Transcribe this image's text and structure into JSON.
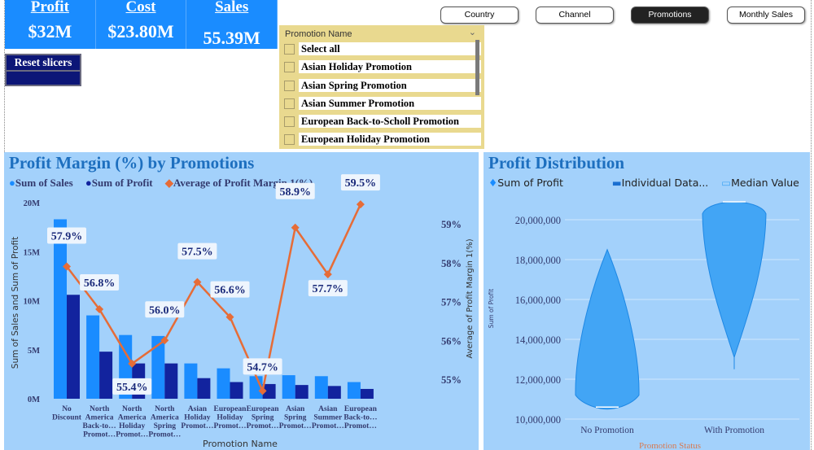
{
  "kpis": [
    {
      "title": "Profit",
      "value": "$32M"
    },
    {
      "title": "Cost",
      "value": "$23.80M"
    },
    {
      "title": "Sales",
      "value": "55.39M"
    }
  ],
  "reset_label": "Reset slicers",
  "nav": [
    {
      "label": "Country",
      "active": false
    },
    {
      "label": "Channel",
      "active": false
    },
    {
      "label": "Promotions",
      "active": true
    },
    {
      "label": "Monthly Sales",
      "active": false
    }
  ],
  "slicer": {
    "title": "Promotion Name",
    "items": [
      "Select all",
      "Asian Holiday Promotion",
      "Asian Spring Promotion",
      "Asian Summer Promotion",
      "European Back-to-Scholl Promotion",
      "European Holiday Promotion"
    ]
  },
  "colors": {
    "sales": "#1a8cff",
    "profit": "#12239e",
    "margin": "#e66c37",
    "panel": "#a3d1fb",
    "title": "#1d6fbf",
    "violin": "#42a5f5"
  },
  "chart_data": [
    {
      "type": "bar",
      "title": "Profit Margin (%) by Promotions",
      "legend": [
        "Sum of Sales",
        "Sum of Profit",
        "Average of Profit Margin 1(%)"
      ],
      "categories": [
        "No Discount",
        "North America Back-to… Promot…",
        "North America Holiday Promot…",
        "North America Spring Promot…",
        "Asian Holiday Promot…",
        "European Holiday Promot…",
        "European Spring Promot…",
        "Asian Spring Promot…",
        "Asian Summer Promot…",
        "European Back-to… Promot…"
      ],
      "xlabel": "Promotion Name",
      "ylabel": "Sum of Sales and Sum of Profit",
      "y2label": "Average of Profit Margin 1(%)",
      "ylim": [
        0,
        20
      ],
      "yticks": [
        "0M",
        "5M",
        "10M",
        "15M",
        "20M"
      ],
      "y2ticks": [
        "55%",
        "56%",
        "57%",
        "58%",
        "59%"
      ],
      "series": [
        {
          "name": "Sum of Sales",
          "values": [
            18.3,
            8.5,
            6.5,
            6.4,
            3.6,
            3.1,
            2.3,
            2.4,
            2.3,
            1.7
          ]
        },
        {
          "name": "Sum of Profit",
          "values": [
            10.6,
            4.8,
            3.6,
            3.6,
            2.1,
            1.7,
            1.5,
            1.4,
            1.3,
            1.0
          ]
        },
        {
          "name": "Average of Profit Margin 1(%)",
          "values": [
            57.9,
            56.8,
            55.4,
            56.0,
            57.5,
            56.6,
            54.7,
            58.9,
            57.7,
            59.5
          ],
          "labels": [
            "57.9%",
            "56.8%",
            "55.4%",
            "56.0%",
            "57.5%",
            "56.6%",
            "54.7%",
            "58.9%",
            "57.7%",
            "59.5%"
          ]
        }
      ]
    },
    {
      "type": "violin",
      "title": "Profit Distribution",
      "legend": [
        "Sum of Profit",
        "Individual Data...",
        "Median Value"
      ],
      "categories": [
        "No Promotion",
        "With Promotion"
      ],
      "xlabel": "Promotion Status",
      "ylabel": "Sum of Profit",
      "ylim": [
        10000000,
        21000000
      ],
      "yticks": [
        "10,000,000",
        "12,000,000",
        "14,000,000",
        "16,000,000",
        "18,000,000",
        "20,000,000"
      ],
      "series": [
        {
          "category": "No Promotion",
          "min": 10500000,
          "max": 18500000,
          "median": 10600000
        },
        {
          "category": "With Promotion",
          "min": 12500000,
          "max": 20900000,
          "median": 20900000
        }
      ]
    }
  ]
}
